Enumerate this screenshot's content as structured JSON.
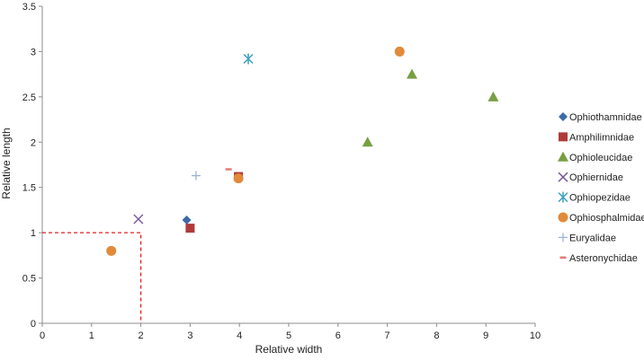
{
  "chart_data": {
    "type": "scatter",
    "xlabel": "Relative width",
    "ylabel": "Relative length",
    "xlim": [
      0,
      10
    ],
    "ylim": [
      0,
      3.5
    ],
    "xticks": [
      "0",
      "1",
      "2",
      "3",
      "4",
      "5",
      "6",
      "7",
      "8",
      "9",
      "10"
    ],
    "yticks": [
      "0",
      "0.5",
      "1",
      "1.5",
      "2",
      "2.5",
      "3",
      "3.5"
    ],
    "grid": false,
    "legend_position": "right",
    "series": [
      {
        "name": "Ophiothamnidae",
        "marker": "diamond",
        "color": "#3d6aa8",
        "points": [
          [
            2.93,
            1.14
          ]
        ]
      },
      {
        "name": "Amphilimnidae",
        "marker": "square",
        "color": "#b03a3a",
        "points": [
          [
            3.0,
            1.05
          ],
          [
            3.98,
            1.62
          ]
        ]
      },
      {
        "name": "Ophioleucidae",
        "marker": "triangle",
        "color": "#77a043",
        "points": [
          [
            6.6,
            2.0
          ],
          [
            7.5,
            2.75
          ],
          [
            9.15,
            2.5
          ]
        ]
      },
      {
        "name": "Ophiernidae",
        "marker": "x",
        "color": "#7b5b99",
        "points": [
          [
            1.95,
            1.15
          ]
        ]
      },
      {
        "name": "Ophiopezidae",
        "marker": "asterisk",
        "color": "#3aa0c0",
        "points": [
          [
            4.18,
            2.92
          ]
        ]
      },
      {
        "name": "Ophiosphalmidae",
        "marker": "circle",
        "color": "#e08a3a",
        "points": [
          [
            1.4,
            0.8
          ],
          [
            3.98,
            1.6
          ],
          [
            7.25,
            3.0
          ]
        ]
      },
      {
        "name": "Euryalidae",
        "marker": "plus",
        "color": "#9bb2d6",
        "points": [
          [
            3.12,
            1.63
          ]
        ]
      },
      {
        "name": "Asteronychidae",
        "marker": "dash",
        "color": "#e07a7a",
        "points": [
          [
            3.78,
            1.7
          ]
        ]
      }
    ],
    "reference_lines": [
      {
        "style": "dashed",
        "color": "#e02020",
        "points": [
          [
            0,
            1
          ],
          [
            2,
            1
          ],
          [
            2,
            0
          ]
        ]
      }
    ]
  }
}
